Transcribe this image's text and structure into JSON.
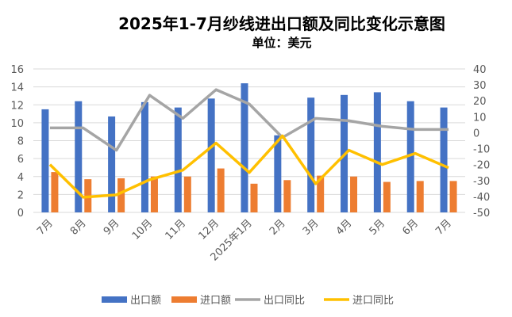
{
  "chart_data": {
    "type": "bar+line",
    "title": "2025年1-7月纱线进出口额及同比变化示意图",
    "subtitle": "单位：美元",
    "categories": [
      "7月",
      "8月",
      "9月",
      "10月",
      "11月",
      "12月",
      "2025年1月",
      "2月",
      "3月",
      "4月",
      "5月",
      "6月",
      "7月"
    ],
    "left_axis": {
      "ylim": [
        0,
        16
      ],
      "ticks": [
        "0",
        "2",
        "4",
        "6",
        "8",
        "10",
        "12",
        "14",
        "16"
      ]
    },
    "right_axis": {
      "ylim": [
        -50,
        40
      ],
      "ticks": [
        "-50",
        "-40",
        "-30",
        "-20",
        "-10",
        "0",
        "10",
        "20",
        "30",
        "40"
      ]
    },
    "grid": true,
    "legend_position": "bottom",
    "series": [
      {
        "name": "出口额",
        "type": "bar",
        "axis": "left",
        "color": "#4472C4",
        "values": [
          11.5,
          12.4,
          10.7,
          12.3,
          11.7,
          12.7,
          14.4,
          8.6,
          12.8,
          13.1,
          13.4,
          12.4,
          11.7
        ]
      },
      {
        "name": "进口额",
        "type": "bar",
        "axis": "left",
        "color": "#ED7D31",
        "values": [
          4.5,
          3.7,
          3.8,
          4.0,
          4.0,
          4.9,
          3.2,
          3.6,
          4.1,
          4.0,
          3.4,
          3.5,
          3.5
        ]
      },
      {
        "name": "出口同比",
        "type": "line",
        "axis": "right",
        "color": "#A5A5A5",
        "values": [
          3,
          3,
          -11,
          23.5,
          9,
          27,
          18,
          -3,
          9,
          7.5,
          4,
          2,
          2
        ]
      },
      {
        "name": "进口同比",
        "type": "line",
        "axis": "right",
        "color": "#FFC000",
        "values": [
          -20,
          -40.5,
          -39,
          -29.5,
          -23.5,
          -6.5,
          -25,
          -2,
          -32,
          -11,
          -20,
          -13,
          -22
        ]
      }
    ]
  }
}
